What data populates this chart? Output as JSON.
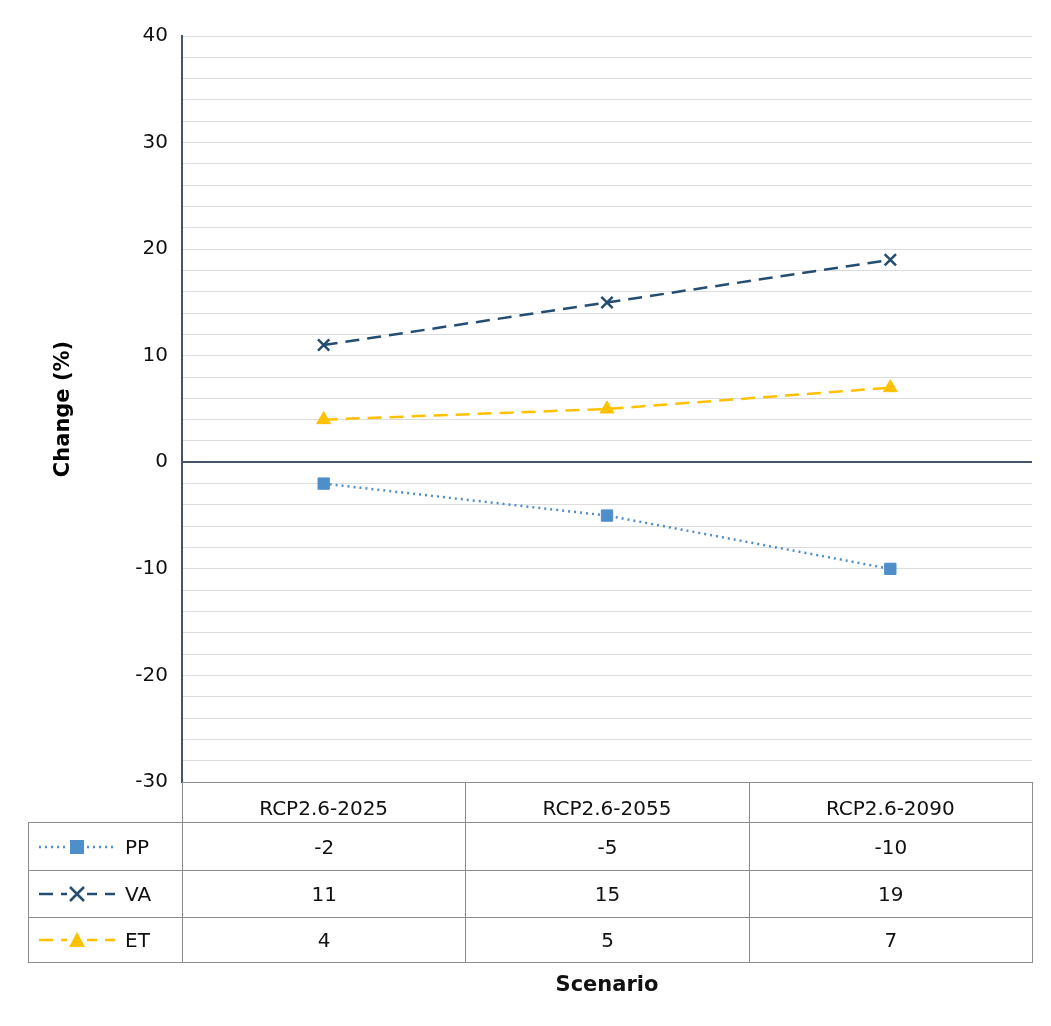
{
  "chart_data": {
    "type": "line",
    "annotations": [
      "Scenario"
    ],
    "ylabel": "Change (%)",
    "categories": [
      "RCP2.6-2025",
      "RCP2.6-2055",
      "RCP2.6-2090"
    ],
    "series": [
      {
        "name": "PP",
        "color": "#4e8ecb",
        "values": [
          -2,
          -5,
          -10
        ],
        "marker": "square",
        "line_style": "dotted"
      },
      {
        "name": "VA",
        "color": "#234d72",
        "values": [
          11,
          15,
          19
        ],
        "marker": "cross",
        "line_style": "dashed"
      },
      {
        "name": "ET",
        "color": "#ffc000",
        "values": [
          4,
          5,
          7
        ],
        "marker": "triangle",
        "line_style": "dashed"
      }
    ],
    "ylim": [
      -30,
      40
    ],
    "yticks": [
      -30,
      {
        "value": -28,
        "label": null
      },
      {
        "value": -26,
        "label": null
      },
      {
        "value": -24,
        "label": null
      },
      {
        "value": -22,
        "label": null
      },
      -20,
      {
        "value": -18,
        "label": null
      },
      {
        "value": -16,
        "label": null
      },
      {
        "value": -14,
        "label": null
      },
      {
        "value": -12,
        "label": null
      },
      -10,
      {
        "value": -8,
        "label": null
      },
      {
        "value": -6,
        "label": null
      },
      {
        "value": -4,
        "label": null
      },
      {
        "value": -2,
        "label": null
      },
      0,
      {
        "value": 2,
        "label": null
      },
      {
        "value": 4,
        "label": null
      },
      {
        "value": 6,
        "label": null
      },
      {
        "value": 8,
        "label": null
      },
      10,
      {
        "value": 12,
        "label": null
      },
      {
        "value": 14,
        "label": null
      },
      {
        "value": 16,
        "label": null
      },
      {
        "value": 18,
        "label": null
      },
      20,
      {
        "value": 22,
        "label": null
      },
      {
        "value": 24,
        "label": null
      },
      {
        "value": 26,
        "label": null
      },
      {
        "value": 28,
        "label": null
      },
      30,
      {
        "value": 32,
        "label": null
      },
      {
        "value": 34,
        "label": null
      },
      {
        "value": 36,
        "label": null
      },
      {
        "value": 38,
        "label": null
      },
      40
    ],
    "grid": "y",
    "legend": "bottom",
    "data_labels": true
  }
}
